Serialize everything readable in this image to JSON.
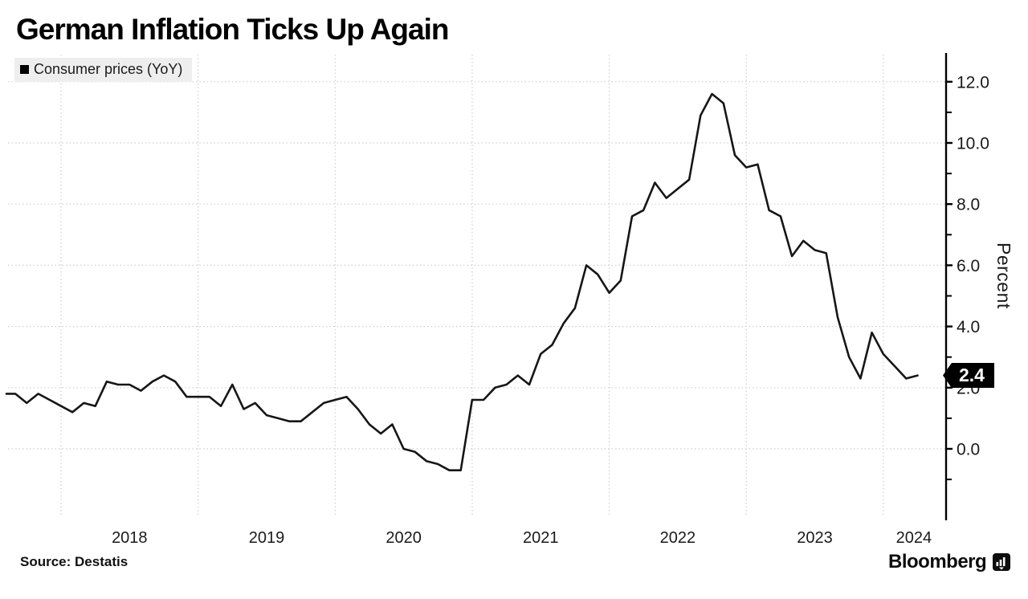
{
  "title": "German Inflation Ticks Up Again",
  "legend": {
    "label": "Consumer prices (YoY)",
    "marker_color": "#000000"
  },
  "source": "Source:  Destatis",
  "brand": {
    "name": "Bloomberg"
  },
  "y_axis": {
    "title": "Percent",
    "major_ticks": [
      {
        "value": 12,
        "label": "12.0"
      },
      {
        "value": 10,
        "label": "10.0"
      },
      {
        "value": 8,
        "label": "8.0"
      },
      {
        "value": 6,
        "label": "6.0"
      },
      {
        "value": 4,
        "label": "4.0"
      },
      {
        "value": 2,
        "label": "2.0"
      },
      {
        "value": 0,
        "label": "0.0"
      }
    ],
    "minor_tick_values": [
      11,
      9,
      7,
      5,
      3,
      1,
      -1
    ],
    "current_value_label": "2.4",
    "badge_bg": "#000000",
    "badge_text_color": "#ffffff"
  },
  "x_axis": {
    "year_labels": [
      "2018",
      "2019",
      "2020",
      "2021",
      "2022",
      "2023",
      "2024"
    ]
  },
  "colors": {
    "line": "#161616",
    "grid": "#cfcfcf",
    "axis": "#000000",
    "legend_bg": "#eeeeee"
  },
  "chart_data": {
    "type": "line",
    "title": "German Inflation Ticks Up Again",
    "ylabel": "Percent",
    "ylim": [
      -1.5,
      12.5
    ],
    "y_ticks": [
      12,
      10,
      8,
      6,
      4,
      2,
      0
    ],
    "x_tick_labels": [
      "2018",
      "2019",
      "2020",
      "2021",
      "2022",
      "2023",
      "2024"
    ],
    "grid": "dotted",
    "legend_position": "top-left",
    "last_value": 2.4,
    "series": [
      {
        "name": "Consumer prices (YoY)",
        "frequency": "monthly",
        "start_month": "2017-08",
        "end_month": "2024-04",
        "values": [
          1.8,
          1.8,
          1.5,
          1.8,
          1.6,
          1.4,
          1.2,
          1.5,
          1.4,
          2.2,
          2.1,
          2.1,
          1.9,
          2.2,
          2.4,
          2.2,
          1.7,
          1.7,
          1.7,
          1.4,
          2.1,
          1.3,
          1.5,
          1.1,
          1.0,
          0.9,
          0.9,
          1.2,
          1.5,
          1.6,
          1.7,
          1.3,
          0.8,
          0.5,
          0.8,
          0.0,
          -0.1,
          -0.4,
          -0.5,
          -0.7,
          -0.7,
          1.6,
          1.6,
          2.0,
          2.1,
          2.4,
          2.1,
          3.1,
          3.4,
          4.1,
          4.6,
          6.0,
          5.7,
          5.1,
          5.5,
          7.6,
          7.8,
          8.7,
          8.2,
          8.5,
          8.8,
          10.9,
          11.6,
          11.3,
          9.6,
          9.2,
          9.3,
          7.8,
          7.6,
          6.3,
          6.8,
          6.5,
          6.4,
          4.3,
          3.0,
          2.3,
          3.8,
          3.1,
          2.7,
          2.3,
          2.4
        ]
      }
    ]
  }
}
